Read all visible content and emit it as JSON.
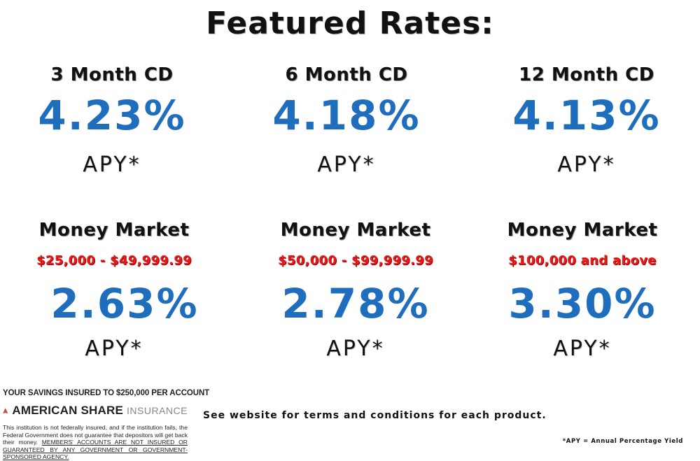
{
  "title": "Featured Rates:",
  "cd_products": [
    {
      "name": "3 Month CD",
      "rate": "4.23%",
      "apy": "APY*"
    },
    {
      "name": "6 Month CD",
      "rate": "4.18%",
      "apy": "APY*"
    },
    {
      "name": "12 Month CD",
      "rate": "4.13%",
      "apy": "APY*"
    }
  ],
  "money_market_products": [
    {
      "name": "Money Market",
      "range": "$25,000 - $49,999.99",
      "rate": "2.63%",
      "apy": "APY*"
    },
    {
      "name": "Money Market",
      "range": "$50,000 - $99,999.99",
      "rate": "2.78%",
      "apy": "APY*"
    },
    {
      "name": "Money Market",
      "range": "$100,000 and above",
      "rate": "3.30%",
      "apy": "APY*"
    }
  ],
  "insurance": {
    "headline": "YOUR SAVINGS INSURED TO $250,000 PER ACCOUNT",
    "brand_bold": "AMERICAN SHARE",
    "brand_light": "INSURANCE",
    "disclaimer_plain": "This institution is not federally insured, and if the institution fails, the Federal Government does not guarantee that depositors will get back their money. ",
    "disclaimer_underlined": "MEMBERS' ACCOUNTS ARE NOT INSURED OR GUARANTEED BY ANY GOVERNMENT OR GOVERNMENT-SPONSORED AGENCY.",
    "logo_icon": "american-share-insurance-logo"
  },
  "terms_note": "See website for terms and conditions for each product.",
  "footnote": "*APY = Annual Percentage Yield",
  "colors": {
    "rate_blue": "#1f6ebd",
    "range_red": "#e21b1b",
    "text_dark": "#111111",
    "logo_red": "#d9342b",
    "logo_blue": "#2b5aa6"
  }
}
